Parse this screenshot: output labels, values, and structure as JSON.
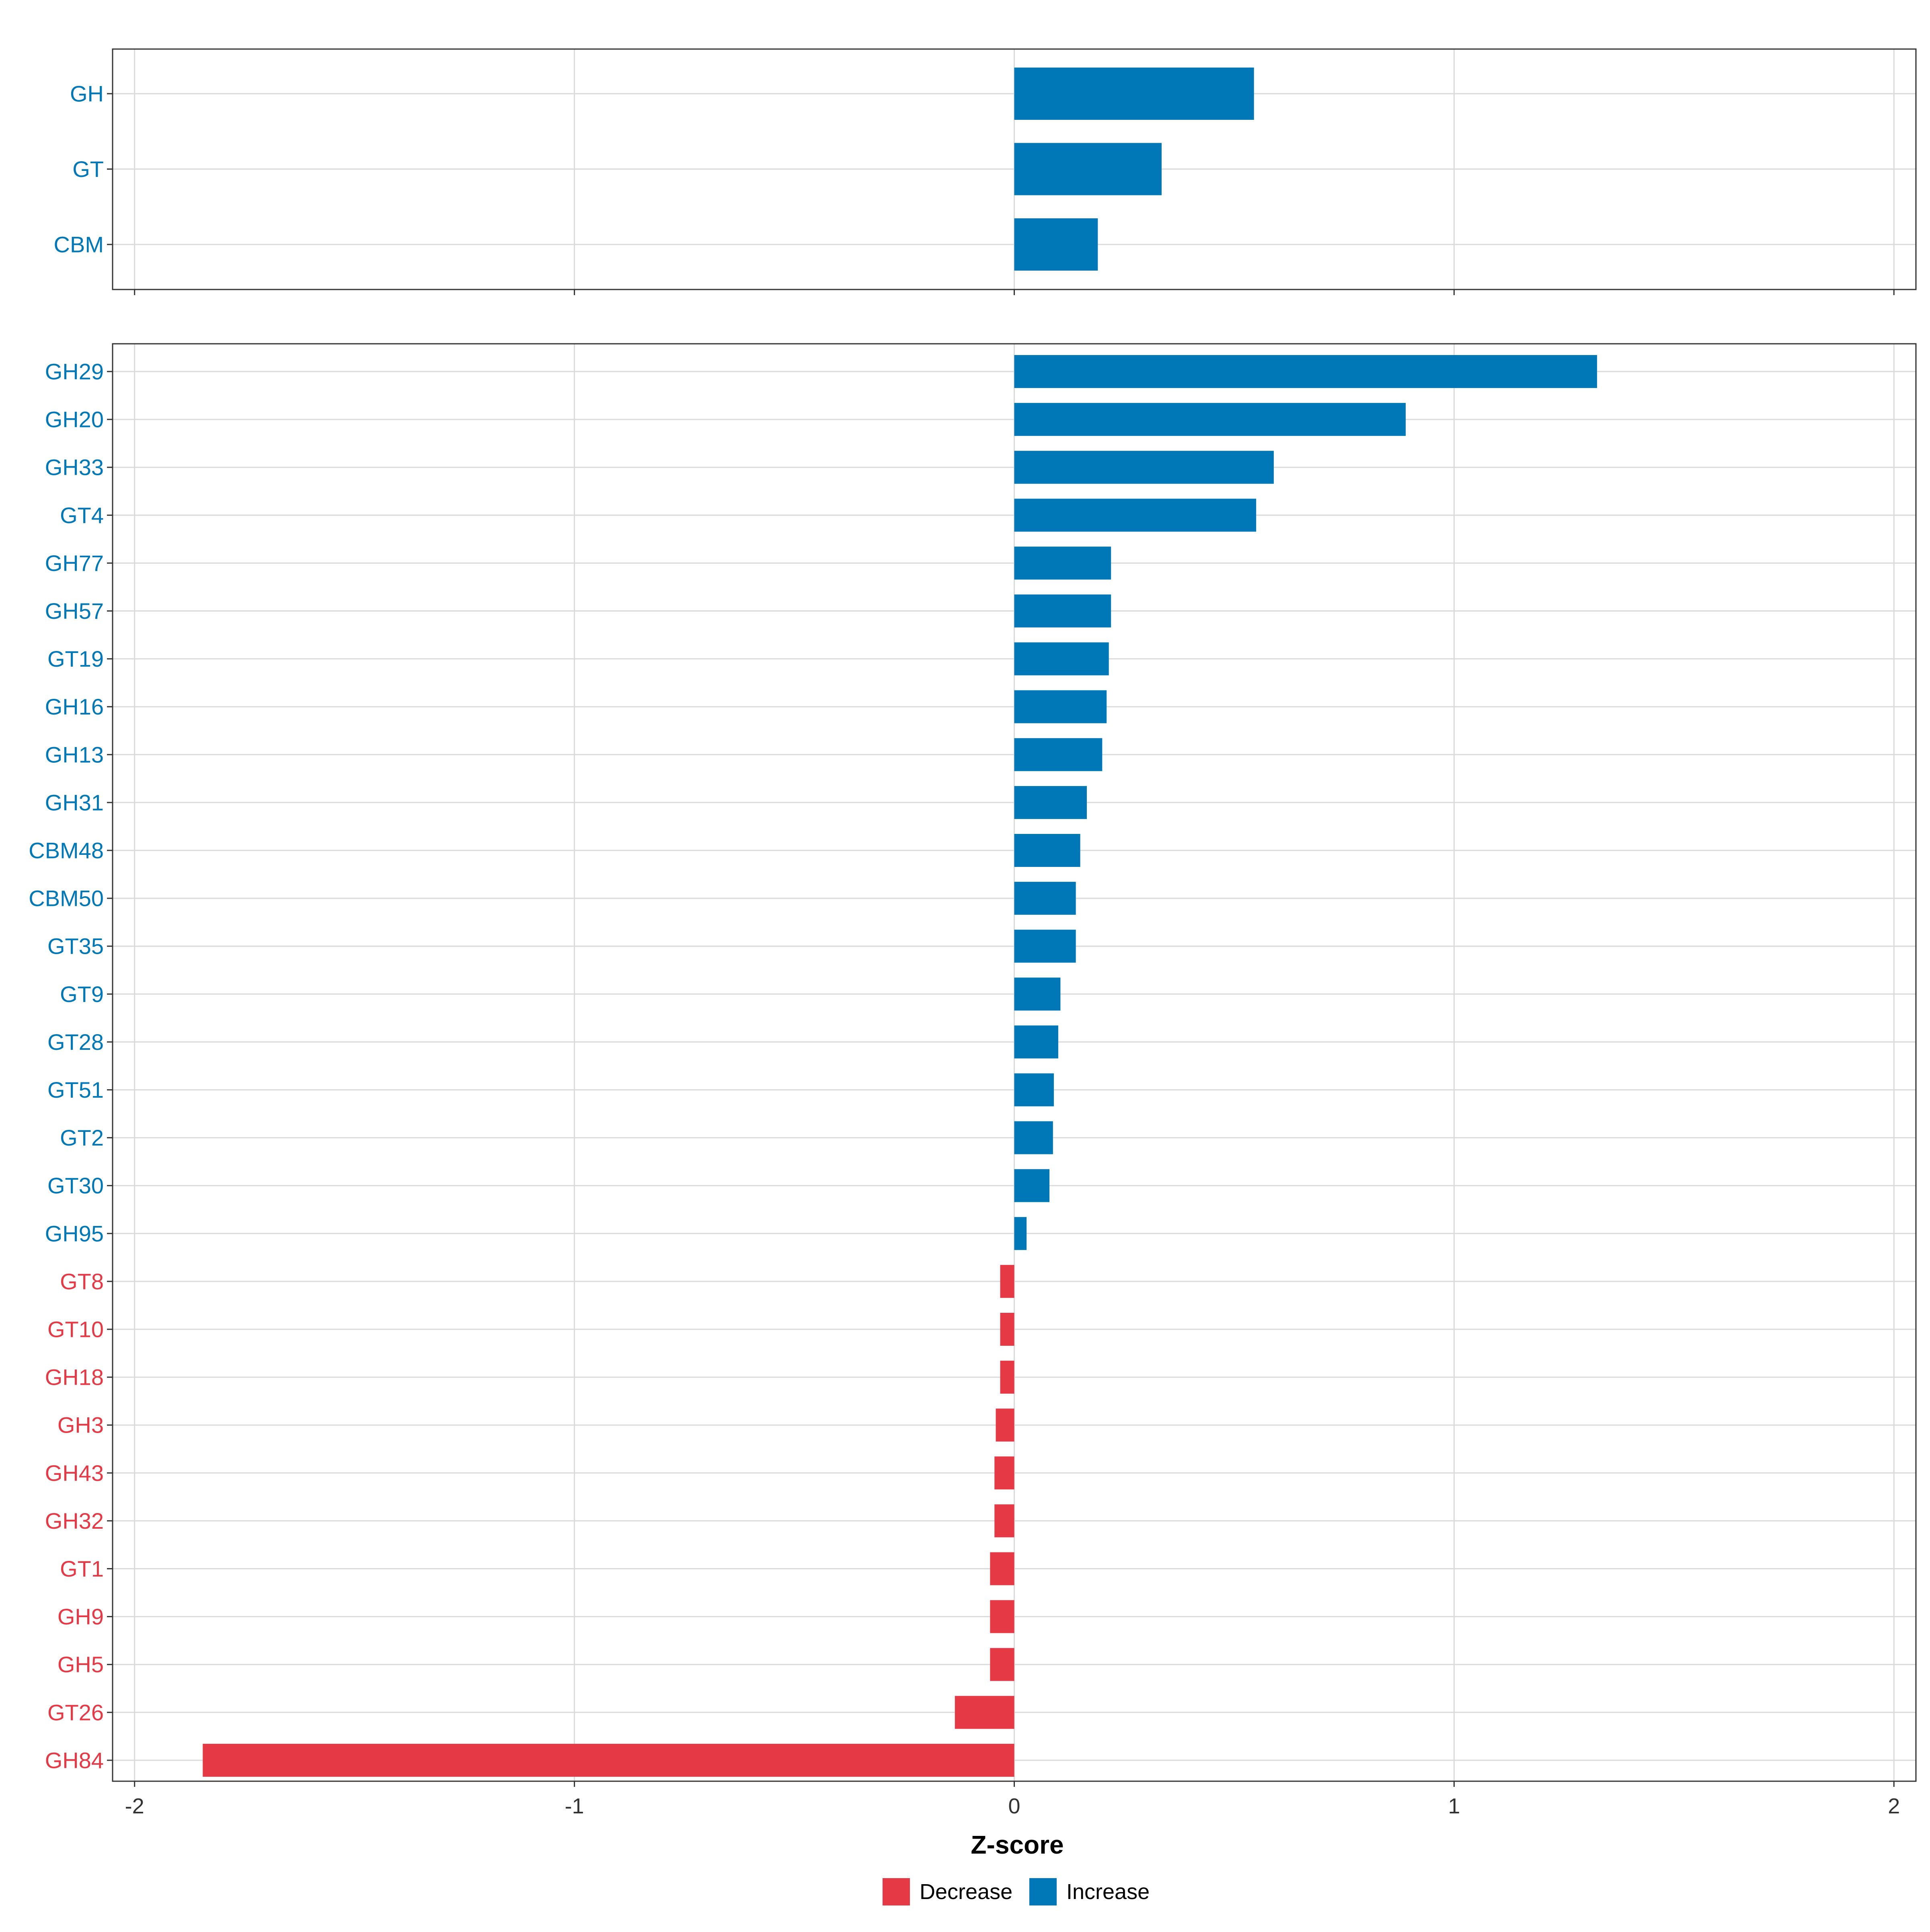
{
  "chart_data": [
    {
      "type": "bar",
      "orientation": "horizontal",
      "panel": "top",
      "categories": [
        "GH",
        "GT",
        "CBM"
      ],
      "values": [
        0.545,
        0.335,
        0.19
      ],
      "xlim": [
        -2.05,
        2.05
      ],
      "grid": true
    },
    {
      "type": "bar",
      "orientation": "horizontal",
      "panel": "bottom",
      "categories": [
        "GH29",
        "GH20",
        "GH33",
        "GT4",
        "GH77",
        "GH57",
        "GT19",
        "GH16",
        "GH13",
        "GH31",
        "CBM48",
        "CBM50",
        "GT35",
        "GT9",
        "GT28",
        "GT51",
        "GT2",
        "GT30",
        "GH95",
        "GT8",
        "GT10",
        "GH18",
        "GH3",
        "GH43",
        "GH32",
        "GT1",
        "GH9",
        "GH5",
        "GT26",
        "GH84"
      ],
      "values": [
        1.325,
        0.89,
        0.59,
        0.55,
        0.22,
        0.22,
        0.215,
        0.21,
        0.2,
        0.165,
        0.15,
        0.14,
        0.14,
        0.105,
        0.1,
        0.09,
        0.088,
        0.08,
        0.028,
        -0.032,
        -0.032,
        -0.032,
        -0.042,
        -0.045,
        -0.045,
        -0.055,
        -0.055,
        -0.055,
        -0.135,
        -1.845
      ],
      "xlim": [
        -2.05,
        2.05
      ],
      "grid": true
    }
  ],
  "axis": {
    "xlabel": "Z-score",
    "xticks": [
      -2,
      -1,
      0,
      1,
      2
    ]
  },
  "legend": {
    "placement": "bottom",
    "items": [
      {
        "label": "Decrease",
        "color": "#E63946"
      },
      {
        "label": "Increase",
        "color": "#0077B6"
      }
    ]
  },
  "colors": {
    "increase": "#0077B6",
    "decrease": "#E63946",
    "grid": "#DADADA",
    "panel_border": "#333333"
  }
}
